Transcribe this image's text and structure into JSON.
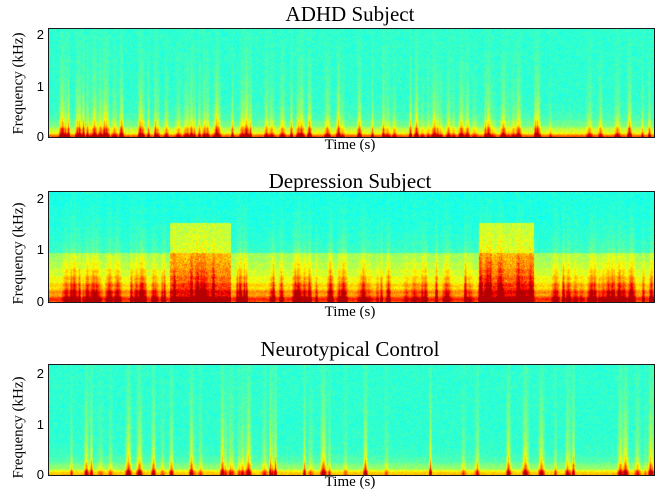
{
  "chart_data": [
    {
      "type": "heatmap",
      "title": "ADHD Subject",
      "xlabel": "Time (s)",
      "ylabel": "Frequency (kHz)",
      "y_ticks": [
        "2",
        "1",
        "0"
      ],
      "ylim": [
        0,
        2.1
      ],
      "colormap": "jet",
      "grid": false
    },
    {
      "type": "heatmap",
      "title": "Depression Subject",
      "xlabel": "Time (s)",
      "ylabel": "Frequency (kHz)",
      "y_ticks": [
        "2",
        "1",
        "0"
      ],
      "ylim": [
        0,
        2.05
      ],
      "colormap": "jet",
      "grid": false
    },
    {
      "type": "heatmap",
      "title": "Neurotypical Control",
      "xlabel": "Time (s)",
      "ylabel": "Frequency (kHz)",
      "y_ticks": [
        "2",
        "1",
        "0"
      ],
      "ylim": [
        0,
        2.3
      ],
      "colormap": "jet",
      "grid": false
    }
  ]
}
